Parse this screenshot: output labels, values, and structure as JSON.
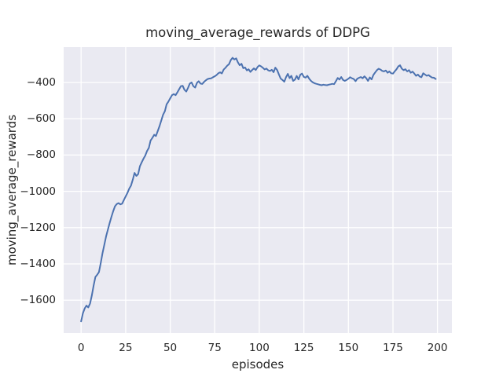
{
  "figure": {
    "background": "#ffffff",
    "axes_background": "#eaeaf2",
    "grid_color": "#ffffff",
    "text_color": "#262626"
  },
  "chart_data": {
    "type": "line",
    "title": "moving_average_rewards of DDPG",
    "xlabel": "episodes",
    "ylabel": "moving_average_rewards",
    "style": "seaborn-darkgrid",
    "grid": true,
    "legend": false,
    "xlim": [
      -9.8,
      208.1
    ],
    "ylim": [
      -1781,
      -205
    ],
    "xticks": [
      {
        "value": 0,
        "label": "0"
      },
      {
        "value": 25,
        "label": "25"
      },
      {
        "value": 50,
        "label": "50"
      },
      {
        "value": 75,
        "label": "75"
      },
      {
        "value": 100,
        "label": "100"
      },
      {
        "value": 125,
        "label": "125"
      },
      {
        "value": 150,
        "label": "150"
      },
      {
        "value": 175,
        "label": "175"
      },
      {
        "value": 200,
        "label": "200"
      }
    ],
    "yticks": [
      {
        "value": -400,
        "label": "−400"
      },
      {
        "value": -600,
        "label": "−600"
      },
      {
        "value": -800,
        "label": "−800"
      },
      {
        "value": -1000,
        "label": "−1000"
      },
      {
        "value": -1200,
        "label": "−1200"
      },
      {
        "value": -1400,
        "label": "−1400"
      },
      {
        "value": -1600,
        "label": "−1600"
      }
    ],
    "series": [
      {
        "name": "DDPG moving average rewards",
        "color": "#4c72b0",
        "x_start": 0,
        "x_step": 1,
        "values": [
          -1717,
          -1672,
          -1645,
          -1630,
          -1640,
          -1618,
          -1575,
          -1520,
          -1472,
          -1460,
          -1445,
          -1395,
          -1342,
          -1295,
          -1248,
          -1212,
          -1175,
          -1140,
          -1110,
          -1082,
          -1070,
          -1065,
          -1072,
          -1068,
          -1048,
          -1028,
          -1008,
          -985,
          -968,
          -935,
          -898,
          -915,
          -905,
          -862,
          -840,
          -820,
          -803,
          -778,
          -760,
          -720,
          -705,
          -688,
          -695,
          -668,
          -640,
          -610,
          -578,
          -558,
          -520,
          -505,
          -487,
          -470,
          -464,
          -470,
          -455,
          -437,
          -420,
          -418,
          -440,
          -450,
          -430,
          -406,
          -400,
          -420,
          -428,
          -402,
          -393,
          -406,
          -408,
          -397,
          -388,
          -381,
          -378,
          -377,
          -371,
          -366,
          -359,
          -349,
          -344,
          -350,
          -329,
          -319,
          -307,
          -299,
          -276,
          -264,
          -273,
          -267,
          -289,
          -305,
          -297,
          -321,
          -317,
          -333,
          -327,
          -342,
          -331,
          -322,
          -331,
          -315,
          -306,
          -311,
          -319,
          -328,
          -323,
          -333,
          -336,
          -330,
          -343,
          -318,
          -331,
          -356,
          -378,
          -386,
          -396,
          -371,
          -352,
          -376,
          -363,
          -391,
          -384,
          -364,
          -383,
          -357,
          -351,
          -369,
          -373,
          -363,
          -379,
          -391,
          -399,
          -404,
          -407,
          -410,
          -413,
          -415,
          -412,
          -414,
          -415,
          -412,
          -410,
          -407,
          -409,
          -393,
          -375,
          -384,
          -370,
          -386,
          -391,
          -386,
          -379,
          -371,
          -377,
          -381,
          -393,
          -379,
          -374,
          -370,
          -377,
          -366,
          -376,
          -391,
          -372,
          -383,
          -359,
          -345,
          -332,
          -324,
          -329,
          -336,
          -339,
          -334,
          -346,
          -339,
          -349,
          -351,
          -339,
          -327,
          -311,
          -305,
          -324,
          -332,
          -327,
          -339,
          -332,
          -346,
          -340,
          -351,
          -363,
          -356,
          -367,
          -371,
          -349,
          -356,
          -363,
          -359,
          -367,
          -373,
          -374,
          -381
        ]
      }
    ]
  }
}
